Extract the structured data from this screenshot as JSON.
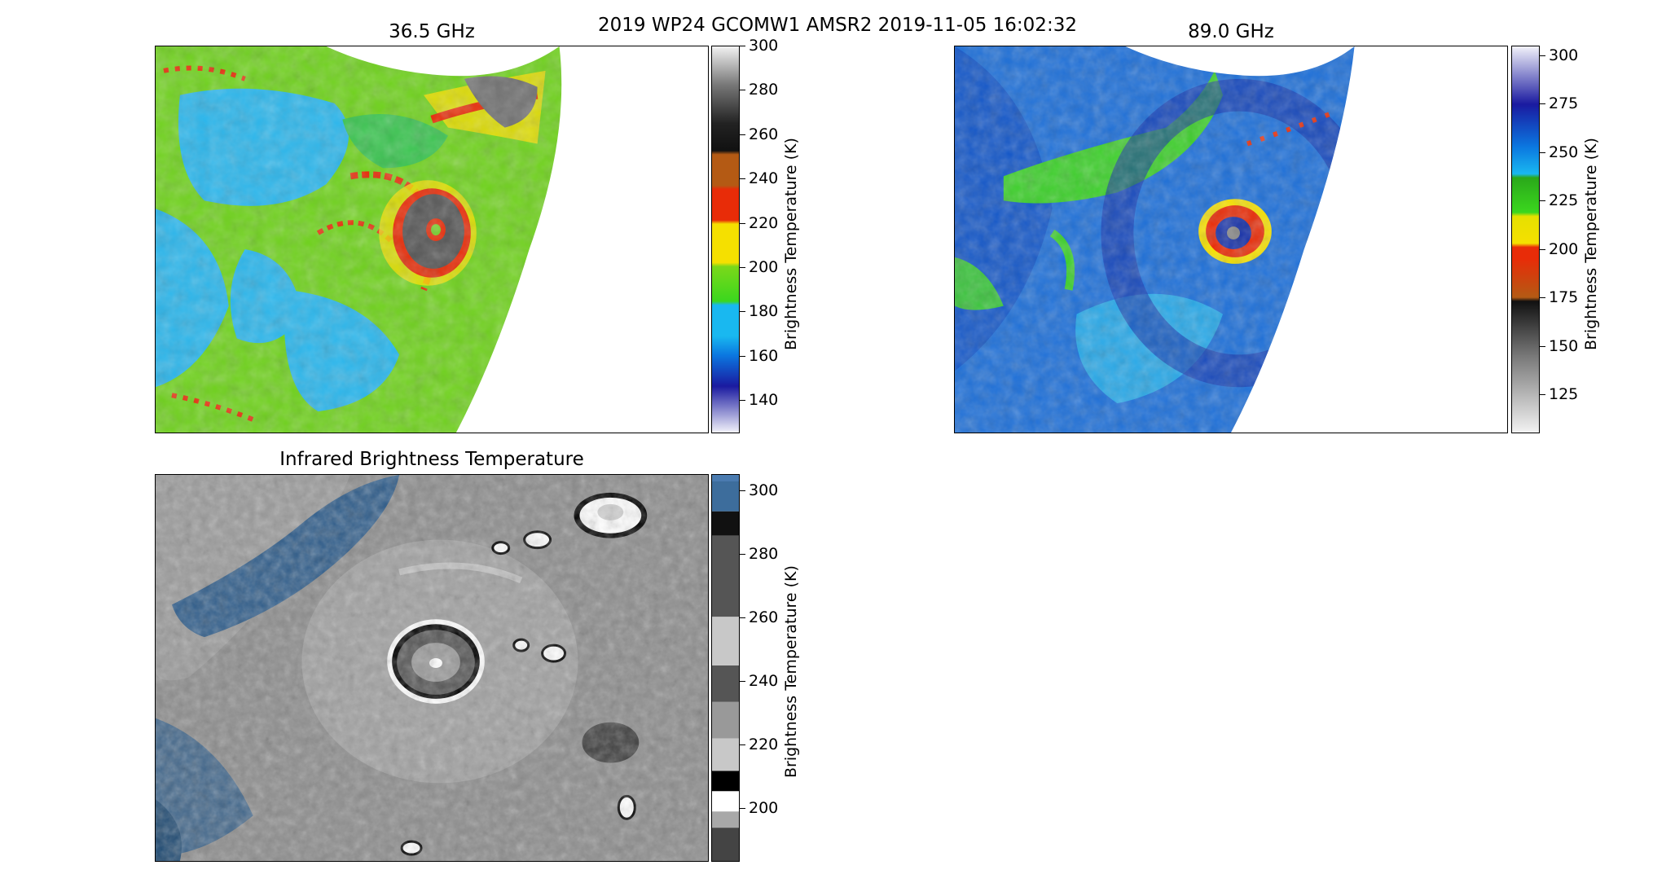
{
  "suptitle": "2019 WP24 GCOMW1 AMSR2 2019-11-05 16:02:32",
  "panels": {
    "p36": {
      "title": "36.5 GHz",
      "colorbar_label": "Brightness Temperature (K)",
      "colorbar_range": [
        125,
        300
      ],
      "colorbar_ticks": [
        "300",
        "280",
        "260",
        "240",
        "220",
        "200",
        "180",
        "160",
        "140"
      ]
    },
    "p89": {
      "title": "89.0 GHz",
      "colorbar_label": "Brightness Temperature (K)",
      "colorbar_range": [
        105,
        305
      ],
      "colorbar_ticks": [
        "300",
        "275",
        "250",
        "225",
        "200",
        "175",
        "150",
        "125"
      ]
    },
    "ir": {
      "title": "Infrared Brightness Temperature",
      "colorbar_label": "Brightness Temperature (K)",
      "colorbar_range": [
        183,
        305
      ],
      "colorbar_ticks": [
        "300",
        "280",
        "260",
        "240",
        "220",
        "200"
      ]
    }
  },
  "colors": {
    "p36_scale": [
      "#f2f2fa",
      "#1a1aa0",
      "#0b77e0",
      "#19b8f0",
      "#3bd71e",
      "#7bd81a",
      "#f5e000",
      "#e82c08",
      "#b45a14",
      "#111111",
      "#707070",
      "#f2f2f2"
    ],
    "p89_scale": [
      "#f2f2f2",
      "#777777",
      "#111111",
      "#b45a14",
      "#e82c08",
      "#f5e000",
      "#3bd71e",
      "#19b8f0",
      "#1a1aa0",
      "#f2f2fa"
    ],
    "ir_scale": [
      "#444444",
      "#a8a8a8",
      "#ffffff",
      "#000000",
      "#c8c8c8",
      "#999999",
      "#555555",
      "#d0d0d0",
      "#2a2a2a",
      "#ffffff",
      "#2e5c8a"
    ]
  }
}
